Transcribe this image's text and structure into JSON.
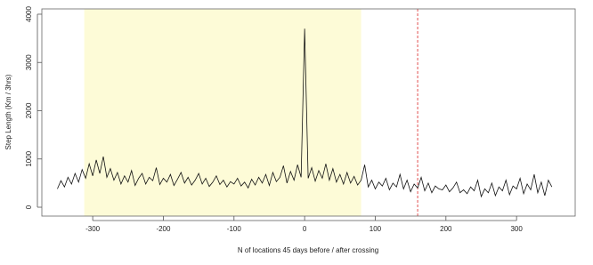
{
  "chart_data": {
    "type": "line",
    "xlabel": "N of locations 45 days before / after crossing",
    "ylabel": "Step Length (Km / 3hrs)",
    "xlim": [
      -372,
      383
    ],
    "ylim": [
      -184,
      4110
    ],
    "xticks": [
      -300,
      -200,
      -100,
      0,
      100,
      200,
      300
    ],
    "yticks": [
      0,
      1000,
      2000,
      3000,
      4000
    ],
    "grid": false,
    "highlight_span": [
      -312,
      80
    ],
    "highlight_color": "#fdfbd7",
    "vline": 160,
    "vline_color": "#e05050",
    "series": [
      {
        "color": "#111111",
        "x": [
          -350,
          -345,
          -340,
          -335,
          -330,
          -325,
          -320,
          -315,
          -310,
          -305,
          -300,
          -295,
          -290,
          -285,
          -280,
          -275,
          -270,
          -265,
          -260,
          -255,
          -250,
          -245,
          -240,
          -235,
          -230,
          -225,
          -220,
          -215,
          -210,
          -205,
          -200,
          -195,
          -190,
          -185,
          -180,
          -175,
          -170,
          -165,
          -160,
          -155,
          -150,
          -145,
          -140,
          -135,
          -130,
          -125,
          -120,
          -115,
          -110,
          -105,
          -100,
          -95,
          -90,
          -85,
          -80,
          -75,
          -70,
          -65,
          -60,
          -55,
          -50,
          -45,
          -40,
          -35,
          -30,
          -25,
          -20,
          -15,
          -10,
          -5,
          0,
          5,
          10,
          15,
          20,
          25,
          30,
          35,
          40,
          45,
          50,
          55,
          60,
          65,
          70,
          75,
          80,
          85,
          90,
          95,
          100,
          105,
          110,
          115,
          120,
          125,
          130,
          135,
          140,
          145,
          150,
          155,
          160,
          165,
          170,
          175,
          180,
          185,
          190,
          195,
          200,
          205,
          210,
          215,
          220,
          225,
          230,
          235,
          240,
          245,
          250,
          255,
          260,
          265,
          270,
          275,
          280,
          285,
          290,
          295,
          300,
          305,
          310,
          315,
          320,
          325,
          330,
          335,
          340,
          345,
          350
        ],
        "values": [
          380,
          550,
          420,
          620,
          480,
          700,
          520,
          780,
          600,
          900,
          650,
          980,
          700,
          1050,
          620,
          800,
          560,
          720,
          480,
          650,
          520,
          760,
          450,
          600,
          700,
          480,
          620,
          550,
          820,
          470,
          600,
          520,
          680,
          450,
          580,
          720,
          500,
          620,
          460,
          560,
          700,
          480,
          600,
          430,
          520,
          650,
          470,
          560,
          420,
          530,
          480,
          600,
          440,
          520,
          400,
          580,
          460,
          620,
          500,
          680,
          450,
          720,
          530,
          620,
          860,
          500,
          740,
          560,
          880,
          620,
          3700,
          600,
          820,
          540,
          760,
          600,
          900,
          560,
          800,
          520,
          680,
          480,
          720,
          500,
          640,
          460,
          560,
          880,
          420,
          560,
          380,
          520,
          440,
          600,
          360,
          500,
          420,
          680,
          380,
          560,
          320,
          480,
          400,
          620,
          340,
          500,
          300,
          440,
          380,
          360,
          460,
          320,
          400,
          520,
          300,
          360,
          280,
          420,
          340,
          560,
          220,
          380,
          300,
          500,
          240,
          420,
          340,
          560,
          260,
          440,
          380,
          600,
          280,
          480,
          360,
          680,
          300,
          520,
          240,
          560,
          420
        ]
      }
    ]
  }
}
